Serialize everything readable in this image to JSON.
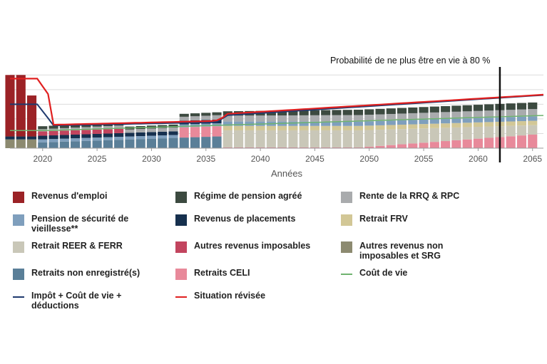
{
  "chart_data": {
    "type": "bar",
    "xlabel": "Années",
    "x_ticks": [
      "2020",
      "2025",
      "2030",
      "2035",
      "2040",
      "2045",
      "2050",
      "2055",
      "2060",
      "2065"
    ],
    "x_range": [
      2017,
      2066
    ],
    "ylim": [
      0,
      110
    ],
    "grid": true,
    "annotation": {
      "text": "Probabilité de ne plus être en vie à 80 %",
      "x": 2062
    },
    "series": [
      {
        "name": "Revenus d'emploi",
        "color": "#9b2226",
        "kind": "bar"
      },
      {
        "name": "Régime de pension agréé",
        "color": "#3c4a40",
        "kind": "bar"
      },
      {
        "name": "Rente de la RRQ & RPC",
        "color": "#a9abad",
        "kind": "bar"
      },
      {
        "name": "Pension de sécurité de vieillesse**",
        "color": "#7f9fbd",
        "kind": "bar"
      },
      {
        "name": "Revenus de placements",
        "color": "#16304e",
        "kind": "bar"
      },
      {
        "name": "Retrait FRV",
        "color": "#d2c796",
        "kind": "bar"
      },
      {
        "name": "Retrait REER & FERR",
        "color": "#c9c7b8",
        "kind": "bar"
      },
      {
        "name": "Autres revenus imposables",
        "color": "#c2445e",
        "kind": "bar"
      },
      {
        "name": "Autres revenus non imposables et SRG",
        "color": "#8c8a70",
        "kind": "bar"
      },
      {
        "name": "Retraits non enregistré(s)",
        "color": "#5a7f98",
        "kind": "bar"
      },
      {
        "name": "Retraits CELI",
        "color": "#e8899a",
        "kind": "bar"
      },
      {
        "name": "Coût de vie",
        "color": "#6fb36f",
        "kind": "line"
      },
      {
        "name": "Impôt + Coût de vie + déductions",
        "color": "#1f3a6e",
        "kind": "line"
      },
      {
        "name": "Situation révisée",
        "color": "#e02020",
        "kind": "line"
      }
    ],
    "legend": {
      "placement": "bottom",
      "columns": [
        [
          "Revenus d'emploi",
          "Pension de sécurité de vieillesse**",
          "Retrait REER & FERR",
          "Retraits non enregistré(s)",
          "Impôt + Coût de vie + déductions"
        ],
        [
          "Régime de pension agréé",
          "Revenus de placements",
          "Autres revenus imposables",
          "Retraits CELI",
          "Situation révisée"
        ],
        [
          "Rente de la RRQ & RPC",
          "Retrait FRV",
          "Autres revenus non imposables et SRG",
          "Coût de vie"
        ]
      ]
    }
  }
}
